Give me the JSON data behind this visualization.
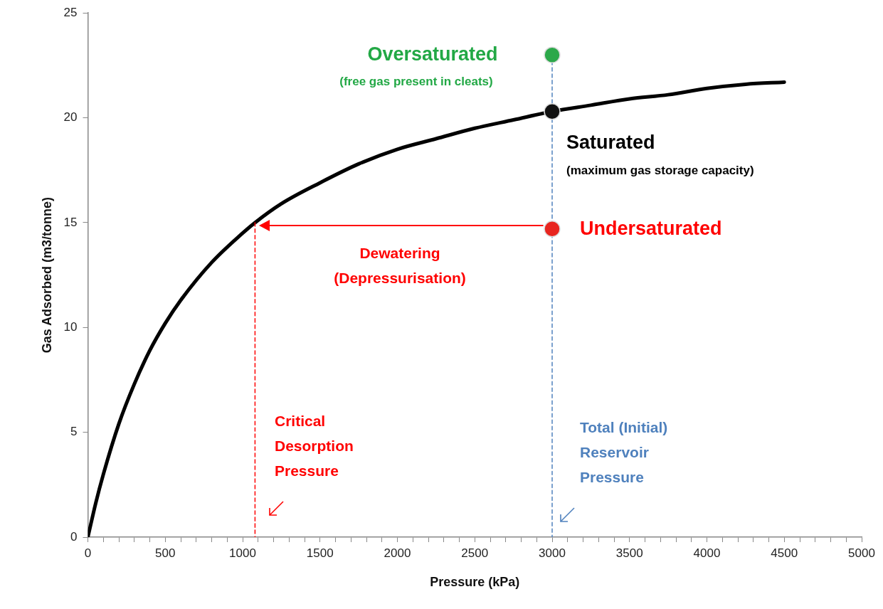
{
  "chart_data": {
    "type": "line",
    "xlabel": "Pressure (kPa)",
    "ylabel": "Gas Adsorbed (m3/tonne)",
    "xlim": [
      0,
      5000
    ],
    "ylim": [
      0,
      25
    ],
    "xticks": [
      0,
      {
        "value": 100,
        "label": null
      },
      {
        "value": 200,
        "label": null
      },
      {
        "value": 300,
        "label": null
      },
      {
        "value": 400,
        "label": null
      },
      500,
      {
        "value": 600,
        "label": null
      },
      {
        "value": 700,
        "label": null
      },
      {
        "value": 800,
        "label": null
      },
      {
        "value": 900,
        "label": null
      },
      1000,
      {
        "value": 1100,
        "label": null
      },
      {
        "value": 1200,
        "label": null
      },
      {
        "value": 1300,
        "label": null
      },
      {
        "value": 1400,
        "label": null
      },
      1500,
      {
        "value": 1600,
        "label": null
      },
      {
        "value": 1700,
        "label": null
      },
      {
        "value": 1800,
        "label": null
      },
      {
        "value": 1900,
        "label": null
      },
      2000,
      {
        "value": 2100,
        "label": null
      },
      {
        "value": 2200,
        "label": null
      },
      {
        "value": 2300,
        "label": null
      },
      {
        "value": 2400,
        "label": null
      },
      2500,
      {
        "value": 2600,
        "label": null
      },
      {
        "value": 2700,
        "label": null
      },
      {
        "value": 2800,
        "label": null
      },
      {
        "value": 2900,
        "label": null
      },
      3000,
      {
        "value": 3100,
        "label": null
      },
      {
        "value": 3200,
        "label": null
      },
      {
        "value": 3300,
        "label": null
      },
      {
        "value": 3400,
        "label": null
      },
      3500,
      {
        "value": 3600,
        "label": null
      },
      {
        "value": 3700,
        "label": null
      },
      {
        "value": 3800,
        "label": null
      },
      {
        "value": 3900,
        "label": null
      },
      4000,
      {
        "value": 4100,
        "label": null
      },
      {
        "value": 4200,
        "label": null
      },
      {
        "value": 4300,
        "label": null
      },
      {
        "value": 4400,
        "label": null
      },
      4500,
      {
        "value": 4600,
        "label": null
      },
      {
        "value": 4700,
        "label": null
      },
      {
        "value": 4800,
        "label": null
      },
      {
        "value": 4900,
        "label": null
      },
      5000
    ],
    "yticks": [
      0,
      5,
      10,
      15,
      20,
      25
    ],
    "series": [
      {
        "color": "#000000",
        "line_style": "solid",
        "x": [
          0,
          50,
          100,
          200,
          300,
          400,
          500,
          600,
          800,
          1000,
          1080,
          1250,
          1500,
          1750,
          2000,
          2250,
          2500,
          2750,
          3000,
          3250,
          3500,
          3750,
          4000,
          4250,
          4500
        ],
        "values": [
          0,
          1.6,
          3.0,
          5.4,
          7.3,
          8.9,
          10.2,
          11.3,
          13.1,
          14.5,
          15.0,
          15.9,
          16.9,
          17.8,
          18.5,
          19.0,
          19.5,
          19.9,
          20.3,
          20.6,
          20.9,
          21.1,
          21.4,
          21.6,
          21.7
        ]
      },
      {
        "color": "#ff0000",
        "line_style": "dashed",
        "x": [
          1080,
          1080
        ],
        "values": [
          15.0,
          0
        ]
      },
      {
        "color": "#4f81bd",
        "line_style": "dashed",
        "x": [
          3000,
          3000
        ],
        "values": [
          23.0,
          0
        ]
      },
      {
        "type": "scatter",
        "marker": "circle",
        "colors": [
          "#2ca84a",
          "#111111",
          "#e8251f"
        ],
        "x": [
          3000,
          3000,
          3000
        ],
        "values": [
          23.0,
          20.3,
          14.7
        ]
      }
    ],
    "annotations": [
      "Oversaturated",
      "(free gas present in cleats)",
      "Saturated",
      "(maximum gas storage capacity)",
      "Undersaturated",
      "Dewatering",
      "(Depressurisation)",
      "Critical",
      "Desorption",
      "Pressure",
      "Total (Initial)",
      "Reservoir",
      "Pressure"
    ]
  }
}
